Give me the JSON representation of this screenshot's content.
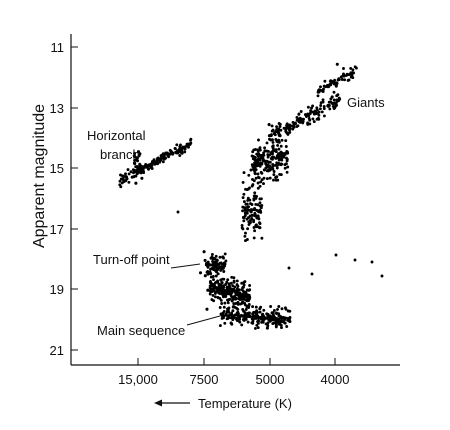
{
  "chart_data": {
    "type": "scatter",
    "title": "",
    "xlabel": "Temperature (K)",
    "ylabel": "Apparent magnitude",
    "ylim": [
      21,
      10.6
    ],
    "y_ticks": [
      11,
      13,
      15,
      17,
      19,
      21
    ],
    "x_ticks": [
      "15,000",
      "7500",
      "5000",
      "4000"
    ],
    "x_axis_arrow": "left",
    "annotations": [
      {
        "key": "giants",
        "text": "Giants"
      },
      {
        "key": "horizontal_branch_line1",
        "text": "Horizontal"
      },
      {
        "key": "horizontal_branch_line2",
        "text": "branch"
      },
      {
        "key": "turnoff",
        "text": "Turn-off point"
      },
      {
        "key": "main_sequence",
        "text": "Main sequence"
      }
    ],
    "point_color": "#000000",
    "series": [
      {
        "name": "Horizontal branch",
        "points": [
          [
            "15,000",
            15.55
          ],
          [
            "15,000",
            15.4
          ],
          [
            "15,000",
            15.2
          ],
          [
            "15,000",
            15.05
          ],
          [
            "15,000",
            14.9
          ],
          [
            "15,000",
            15.1
          ],
          [
            "15,000",
            14.95
          ],
          [
            "15,000",
            14.8
          ],
          [
            "15,000",
            14.75
          ],
          [
            "15,000",
            14.6
          ],
          [
            "15,000",
            14.9
          ],
          [
            "15,000",
            14.7
          ],
          [
            "15,000",
            14.55
          ],
          [
            "15,000",
            14.65
          ],
          [
            "15,000",
            14.5
          ],
          [
            "15,000",
            14.6
          ],
          [
            "15,000",
            14.55
          ],
          [
            "15,000",
            14.4
          ],
          [
            "15,000",
            14.7
          ]
        ]
      },
      {
        "name": "Turn-off point",
        "points": [
          [
            "7500",
            18.4
          ],
          [
            "7500",
            18.2
          ],
          [
            "7500",
            18.0
          ],
          [
            "7500",
            17.8
          ],
          [
            "7500",
            18.6
          ]
        ]
      },
      {
        "name": "Main sequence",
        "points": [
          [
            "7500",
            19.0
          ],
          [
            "7500",
            19.6
          ],
          [
            "5000",
            20.0
          ],
          [
            "5000",
            20.3
          ],
          [
            "5000",
            19.8
          ]
        ]
      },
      {
        "name": "Giants",
        "points": [
          [
            "4000",
            11.6
          ],
          [
            "4000",
            12.0
          ],
          [
            "4000",
            12.6
          ],
          [
            "5000",
            13.6
          ],
          [
            "5000",
            14.4
          ],
          [
            "5000",
            15.0
          ]
        ]
      }
    ]
  }
}
